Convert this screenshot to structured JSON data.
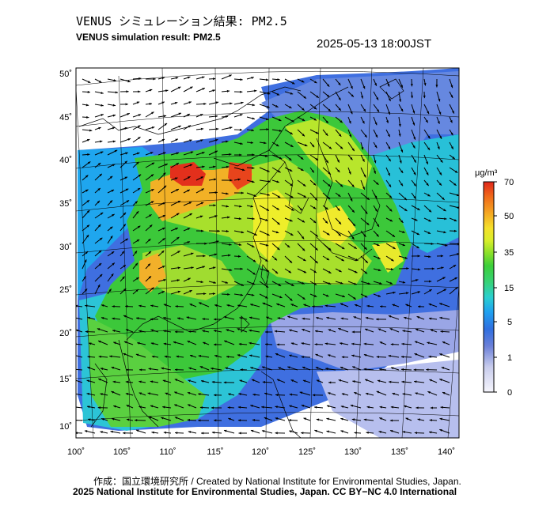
{
  "title_ja": "VENUS シミュレーション結果: PM2.5",
  "title_en": "VENUS simulation result: PM2.5",
  "timestamp": "2025-05-13 18:00JST",
  "map": {
    "lon_labels": [
      "100˚",
      "105˚",
      "110˚",
      "115˚",
      "120˚",
      "125˚",
      "130˚",
      "135˚",
      "140˚"
    ],
    "lat_labels": [
      "50˚",
      "45˚",
      "40˚",
      "35˚",
      "30˚",
      "25˚",
      "20˚",
      "15˚",
      "10˚"
    ]
  },
  "colorbar": {
    "unit_label": "μg/m³",
    "tick_labels": [
      "70",
      "50",
      "35",
      "15",
      "5",
      "1",
      "0"
    ],
    "colors": [
      "#f5f5fc",
      "#c8ccec",
      "#6a7fd8",
      "#2f6fe0",
      "#1fa0f0",
      "#2acfd0",
      "#36d27a",
      "#3ccf3a",
      "#8ae02a",
      "#d8ee2a",
      "#f5e02a",
      "#f5a822",
      "#f06a1a",
      "#e0261a"
    ]
  },
  "footer": {
    "credit": "作成：国立環境研究所 / Created by National Institute for Environmental Studies, Japan.",
    "license": "2025 National Institute for Environmental Studies, Japan. CC BY−NC 4.0 International"
  }
}
